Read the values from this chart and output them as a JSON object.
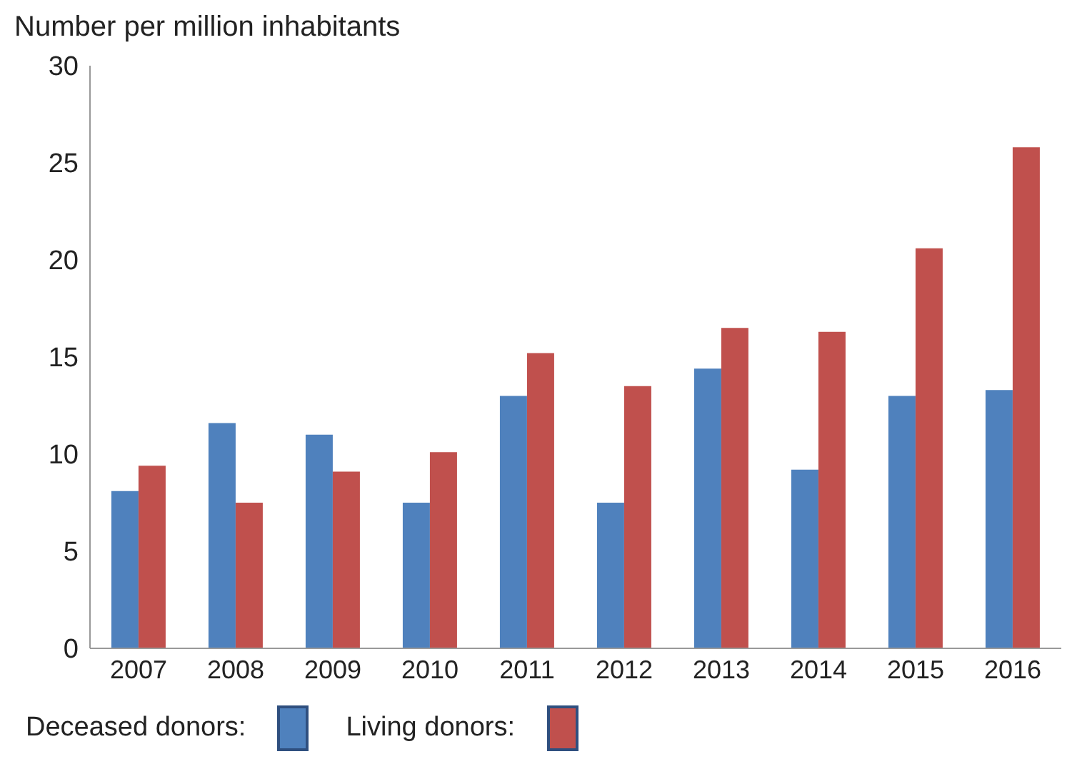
{
  "chart_data": {
    "type": "bar",
    "ylabel": "Number per million inhabitants",
    "categories": [
      "2007",
      "2008",
      "2009",
      "2010",
      "2011",
      "2012",
      "2013",
      "2014",
      "2015",
      "2016"
    ],
    "series": [
      {
        "name": "Deceased donors:",
        "color": "#4f81bd",
        "values": [
          8.1,
          11.6,
          11.0,
          7.5,
          13.0,
          7.5,
          14.4,
          9.2,
          13.0,
          13.3
        ]
      },
      {
        "name": "Living donors:",
        "color": "#c0504d",
        "values": [
          9.4,
          7.5,
          9.1,
          10.1,
          15.2,
          13.5,
          16.5,
          16.3,
          20.6,
          25.8
        ]
      }
    ],
    "ylim": [
      0,
      30
    ],
    "yticks": [
      0,
      5,
      10,
      15,
      20,
      25,
      30
    ],
    "grid": false,
    "legend": "bottom"
  }
}
